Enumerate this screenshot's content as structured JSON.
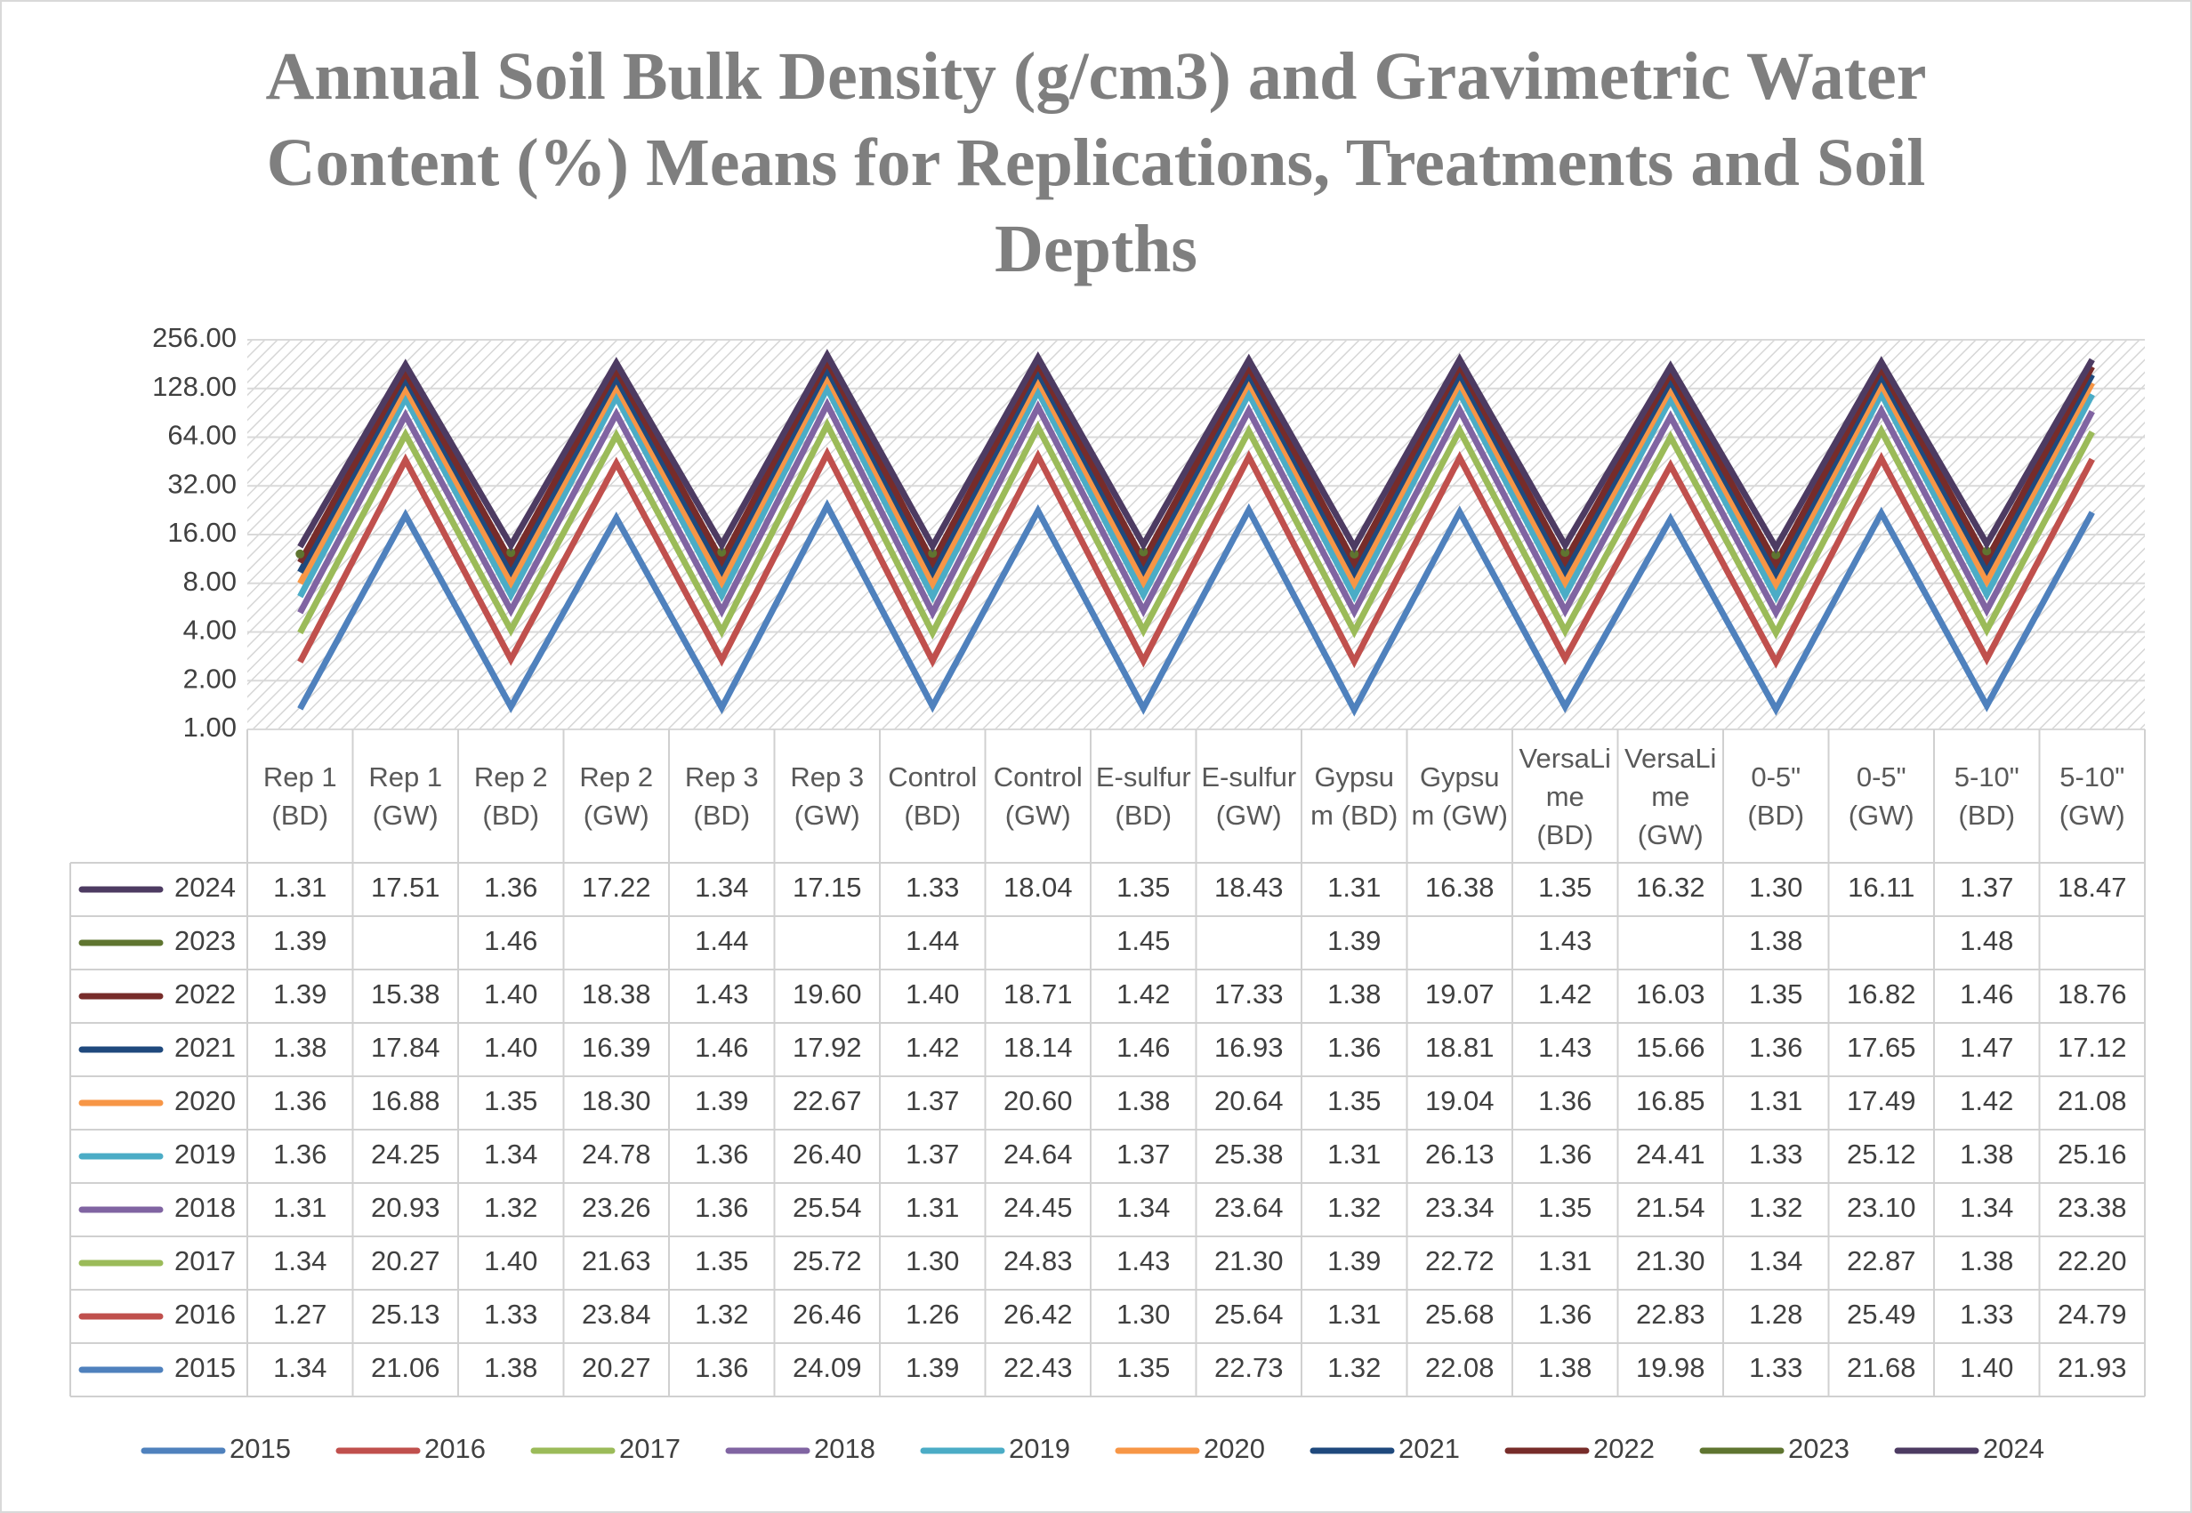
{
  "chart_data": {
    "type": "line",
    "stacked": true,
    "log_base": 2,
    "data_table": true,
    "legend": "bottom",
    "grid": true,
    "title": "Annual Soil Bulk Density (g/cm3) and Gravimetric Water Content (%) Means for Replications, Treatments and Soil Depths",
    "categories": [
      "Rep 1 (BD)",
      "Rep 1 (GW)",
      "Rep 2 (BD)",
      "Rep 2 (GW)",
      "Rep 3 (BD)",
      "Rep 3 (GW)",
      "Control (BD)",
      "Control (GW)",
      "E-sulfur (BD)",
      "E-sulfur (GW)",
      "Gypsum (BD)",
      "Gypsum (GW)",
      "VersaLime (BD)",
      "VersaLime (GW)",
      "0-5\" (BD)",
      "0-5\" (GW)",
      "5-10\" (BD)",
      "5-10\" (GW)"
    ],
    "ylim": [
      1,
      256
    ],
    "yticks": [
      {
        "value": 1,
        "label": "1.00"
      },
      {
        "value": 2,
        "label": "2.00"
      },
      {
        "value": 4,
        "label": "4.00"
      },
      {
        "value": 8,
        "label": "8.00"
      },
      {
        "value": 16,
        "label": "16.00"
      },
      {
        "value": 32,
        "label": "32.00"
      },
      {
        "value": 64,
        "label": "64.00"
      },
      {
        "value": 128,
        "label": "128.00"
      },
      {
        "value": 256,
        "label": "256.00"
      }
    ],
    "series": [
      {
        "name": "2015",
        "color": "#4f81bd",
        "values": [
          1.34,
          21.06,
          1.38,
          20.27,
          1.36,
          24.09,
          1.39,
          22.43,
          1.35,
          22.73,
          1.32,
          22.08,
          1.38,
          19.98,
          1.33,
          21.68,
          1.4,
          21.93
        ],
        "value_labels": [
          "1.34",
          "21.06",
          "1.38",
          "20.27",
          "1.36",
          "24.09",
          "1.39",
          "22.43",
          "1.35",
          "22.73",
          "1.32",
          "22.08",
          "1.38",
          "19.98",
          "1.33",
          "21.68",
          "1.40",
          "21.93"
        ]
      },
      {
        "name": "2016",
        "color": "#c0504d",
        "values": [
          1.27,
          25.13,
          1.33,
          23.84,
          1.32,
          26.46,
          1.26,
          26.42,
          1.3,
          25.64,
          1.31,
          25.68,
          1.36,
          22.83,
          1.28,
          25.49,
          1.33,
          24.79
        ],
        "value_labels": [
          "1.27",
          "25.13",
          "1.33",
          "23.84",
          "1.32",
          "26.46",
          "1.26",
          "26.42",
          "1.30",
          "25.64",
          "1.31",
          "25.68",
          "1.36",
          "22.83",
          "1.28",
          "25.49",
          "1.33",
          "24.79"
        ]
      },
      {
        "name": "2017",
        "color": "#9bbb59",
        "values": [
          1.34,
          20.27,
          1.4,
          21.63,
          1.35,
          25.72,
          1.3,
          24.83,
          1.43,
          21.3,
          1.39,
          22.72,
          1.31,
          21.3,
          1.34,
          22.87,
          1.38,
          22.2
        ],
        "value_labels": [
          "1.34",
          "20.27",
          "1.40",
          "21.63",
          "1.35",
          "25.72",
          "1.30",
          "24.83",
          "1.43",
          "21.30",
          "1.39",
          "22.72",
          "1.31",
          "21.30",
          "1.34",
          "22.87",
          "1.38",
          "22.20"
        ]
      },
      {
        "name": "2018",
        "color": "#8064a2",
        "values": [
          1.31,
          20.93,
          1.32,
          23.26,
          1.36,
          25.54,
          1.31,
          24.45,
          1.34,
          23.64,
          1.32,
          23.34,
          1.35,
          21.54,
          1.32,
          23.1,
          1.34,
          23.38
        ],
        "value_labels": [
          "1.31",
          "20.93",
          "1.32",
          "23.26",
          "1.36",
          "25.54",
          "1.31",
          "24.45",
          "1.34",
          "23.64",
          "1.32",
          "23.34",
          "1.35",
          "21.54",
          "1.32",
          "23.10",
          "1.34",
          "23.38"
        ]
      },
      {
        "name": "2019",
        "color": "#4bacc6",
        "values": [
          1.36,
          24.25,
          1.34,
          24.78,
          1.36,
          26.4,
          1.37,
          24.64,
          1.37,
          25.38,
          1.31,
          26.13,
          1.36,
          24.41,
          1.33,
          25.12,
          1.38,
          25.16
        ],
        "value_labels": [
          "1.36",
          "24.25",
          "1.34",
          "24.78",
          "1.36",
          "26.40",
          "1.37",
          "24.64",
          "1.37",
          "25.38",
          "1.31",
          "26.13",
          "1.36",
          "24.41",
          "1.33",
          "25.12",
          "1.38",
          "25.16"
        ]
      },
      {
        "name": "2020",
        "color": "#f79646",
        "values": [
          1.36,
          16.88,
          1.35,
          18.3,
          1.39,
          22.67,
          1.37,
          20.6,
          1.38,
          20.64,
          1.35,
          19.04,
          1.36,
          16.85,
          1.31,
          17.49,
          1.42,
          21.08
        ],
        "value_labels": [
          "1.36",
          "16.88",
          "1.35",
          "18.30",
          "1.39",
          "22.67",
          "1.37",
          "20.60",
          "1.38",
          "20.64",
          "1.35",
          "19.04",
          "1.36",
          "16.85",
          "1.31",
          "17.49",
          "1.42",
          "21.08"
        ]
      },
      {
        "name": "2021",
        "color": "#1f497d",
        "values": [
          1.38,
          17.84,
          1.4,
          16.39,
          1.46,
          17.92,
          1.42,
          18.14,
          1.46,
          16.93,
          1.36,
          18.81,
          1.43,
          15.66,
          1.36,
          17.65,
          1.47,
          17.12
        ],
        "value_labels": [
          "1.38",
          "17.84",
          "1.40",
          "16.39",
          "1.46",
          "17.92",
          "1.42",
          "18.14",
          "1.46",
          "16.93",
          "1.36",
          "18.81",
          "1.43",
          "15.66",
          "1.36",
          "17.65",
          "1.47",
          "17.12"
        ]
      },
      {
        "name": "2022",
        "color": "#772c2a",
        "values": [
          1.39,
          15.38,
          1.4,
          18.38,
          1.43,
          19.6,
          1.4,
          18.71,
          1.42,
          17.33,
          1.38,
          19.07,
          1.42,
          16.03,
          1.35,
          16.82,
          1.46,
          18.76
        ],
        "value_labels": [
          "1.39",
          "15.38",
          "1.40",
          "18.38",
          "1.43",
          "19.60",
          "1.40",
          "18.71",
          "1.42",
          "17.33",
          "1.38",
          "19.07",
          "1.42",
          "16.03",
          "1.35",
          "16.82",
          "1.46",
          "18.76"
        ]
      },
      {
        "name": "2023",
        "color": "#5f7530",
        "values": [
          1.39,
          null,
          1.46,
          null,
          1.44,
          null,
          1.44,
          null,
          1.45,
          null,
          1.39,
          null,
          1.43,
          null,
          1.38,
          null,
          1.48,
          null
        ],
        "value_labels": [
          "1.39",
          null,
          "1.46",
          null,
          "1.44",
          null,
          "1.44",
          null,
          "1.45",
          null,
          "1.39",
          null,
          "1.43",
          null,
          "1.38",
          null,
          "1.48",
          null
        ]
      },
      {
        "name": "2024",
        "color": "#4d3b62",
        "values": [
          1.31,
          17.51,
          1.36,
          17.22,
          1.34,
          17.15,
          1.33,
          18.04,
          1.35,
          18.43,
          1.31,
          16.38,
          1.35,
          16.32,
          1.3,
          16.11,
          1.37,
          18.47
        ],
        "value_labels": [
          "1.31",
          "17.51",
          "1.36",
          "17.22",
          "1.34",
          "17.15",
          "1.33",
          "18.04",
          "1.35",
          "18.43",
          "1.31",
          "16.38",
          "1.35",
          "16.32",
          "1.30",
          "16.11",
          "1.37",
          "18.47"
        ]
      }
    ]
  }
}
